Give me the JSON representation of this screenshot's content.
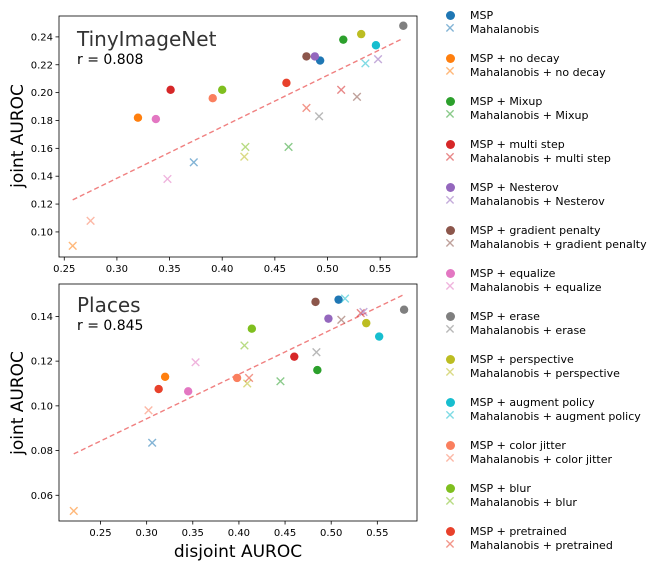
{
  "colors": {
    "MSP": "#1f77b4",
    "MSP + no decay": "#ff7f0e",
    "MSP + Mixup": "#2ca02c",
    "MSP + multi step": "#d62728",
    "MSP + Nesterov": "#9467bd",
    "MSP + gradient penalty": "#8c564b",
    "MSP + equalize": "#e377c2",
    "MSP + erase": "#7f7f7f",
    "MSP + perspective": "#bcbd22",
    "MSP + augment policy": "#17becf",
    "MSP + color jitter": "#fa7f5e",
    "MSP + blur": "#7fbf1f",
    "MSP + pretrained": "#e8412b",
    "fit_line": "#f08080"
  },
  "legend": [
    {
      "label": "MSP",
      "group": "MSP",
      "marker": "o"
    },
    {
      "label": "Mahalanobis",
      "group": "MSP",
      "marker": "x"
    },
    {
      "label": "MSP + no decay",
      "group": "MSP + no decay",
      "marker": "o"
    },
    {
      "label": "Mahalanobis + no decay",
      "group": "MSP + no decay",
      "marker": "x"
    },
    {
      "label": "MSP + Mixup",
      "group": "MSP + Mixup",
      "marker": "o"
    },
    {
      "label": "Mahalanobis + Mixup",
      "group": "MSP + Mixup",
      "marker": "x"
    },
    {
      "label": "MSP + multi step",
      "group": "MSP + multi step",
      "marker": "o"
    },
    {
      "label": "Mahalanobis + multi step",
      "group": "MSP + multi step",
      "marker": "x"
    },
    {
      "label": "MSP + Nesterov",
      "group": "MSP + Nesterov",
      "marker": "o"
    },
    {
      "label": "Mahalanobis + Nesterov",
      "group": "MSP + Nesterov",
      "marker": "x"
    },
    {
      "label": "MSP + gradient penalty",
      "group": "MSP + gradient penalty",
      "marker": "o"
    },
    {
      "label": "Mahalanobis + gradient penalty",
      "group": "MSP + gradient penalty",
      "marker": "x"
    },
    {
      "label": "MSP + equalize",
      "group": "MSP + equalize",
      "marker": "o"
    },
    {
      "label": "Mahalanobis + equalize",
      "group": "MSP + equalize",
      "marker": "x"
    },
    {
      "label": "MSP + erase",
      "group": "MSP + erase",
      "marker": "o"
    },
    {
      "label": "Mahalanobis + erase",
      "group": "MSP + erase",
      "marker": "x"
    },
    {
      "label": "MSP + perspective",
      "group": "MSP + perspective",
      "marker": "o"
    },
    {
      "label": "Mahalanobis + perspective",
      "group": "MSP + perspective",
      "marker": "x"
    },
    {
      "label": "MSP + augment policy",
      "group": "MSP + augment policy",
      "marker": "o"
    },
    {
      "label": "Mahalanobis + augment policy",
      "group": "MSP + augment policy",
      "marker": "x"
    },
    {
      "label": "MSP + color jitter",
      "group": "MSP + color jitter",
      "marker": "o"
    },
    {
      "label": "Mahalanobis + color jitter",
      "group": "MSP + color jitter",
      "marker": "x"
    },
    {
      "label": "MSP + blur",
      "group": "MSP + blur",
      "marker": "o"
    },
    {
      "label": "Mahalanobis + blur",
      "group": "MSP + blur",
      "marker": "x"
    },
    {
      "label": "MSP + pretrained",
      "group": "MSP + pretrained",
      "marker": "o"
    },
    {
      "label": "Mahalanobis + pretrained",
      "group": "MSP + pretrained",
      "marker": "x"
    }
  ],
  "chart_data": [
    {
      "type": "scatter",
      "title": "TinyImageNet",
      "annotation": "r = 0.808",
      "ylabel": "joint AUROC",
      "xlabel": "",
      "xlim": [
        0.245,
        0.585
      ],
      "ylim": [
        0.082,
        0.255
      ],
      "xticks": [
        "0.25",
        "0.30",
        "0.35",
        "0.40",
        "0.45",
        "0.50",
        "0.55"
      ],
      "xtick_values": [
        0.25,
        0.3,
        0.35,
        0.4,
        0.45,
        0.5,
        0.55
      ],
      "yticks": [
        "0.10",
        "0.12",
        "0.14",
        "0.16",
        "0.18",
        "0.20",
        "0.22",
        "0.24"
      ],
      "ytick_values": [
        0.1,
        0.12,
        0.14,
        0.16,
        0.18,
        0.2,
        0.22,
        0.24
      ],
      "fit_line": {
        "x": [
          0.258,
          0.572
        ],
        "y": [
          0.123,
          0.239
        ]
      },
      "points": [
        {
          "group": "MSP",
          "marker": "o",
          "x": 0.493,
          "y": 0.223
        },
        {
          "group": "MSP",
          "marker": "x",
          "x": 0.373,
          "y": 0.15
        },
        {
          "group": "MSP + no decay",
          "marker": "o",
          "x": 0.32,
          "y": 0.182
        },
        {
          "group": "MSP + no decay",
          "marker": "x",
          "x": 0.258,
          "y": 0.09
        },
        {
          "group": "MSP + Mixup",
          "marker": "o",
          "x": 0.515,
          "y": 0.238
        },
        {
          "group": "MSP + Mixup",
          "marker": "x",
          "x": 0.463,
          "y": 0.161
        },
        {
          "group": "MSP + multi step",
          "marker": "o",
          "x": 0.351,
          "y": 0.202
        },
        {
          "group": "MSP + multi step",
          "marker": "x",
          "x": 0.513,
          "y": 0.202
        },
        {
          "group": "MSP + Nesterov",
          "marker": "o",
          "x": 0.488,
          "y": 0.226
        },
        {
          "group": "MSP + Nesterov",
          "marker": "x",
          "x": 0.548,
          "y": 0.224
        },
        {
          "group": "MSP + gradient penalty",
          "marker": "o",
          "x": 0.48,
          "y": 0.226
        },
        {
          "group": "MSP + gradient penalty",
          "marker": "x",
          "x": 0.528,
          "y": 0.197
        },
        {
          "group": "MSP + equalize",
          "marker": "o",
          "x": 0.337,
          "y": 0.181
        },
        {
          "group": "MSP + equalize",
          "marker": "x",
          "x": 0.348,
          "y": 0.138
        },
        {
          "group": "MSP + erase",
          "marker": "o",
          "x": 0.572,
          "y": 0.248
        },
        {
          "group": "MSP + erase",
          "marker": "x",
          "x": 0.492,
          "y": 0.183
        },
        {
          "group": "MSP + perspective",
          "marker": "o",
          "x": 0.532,
          "y": 0.242
        },
        {
          "group": "MSP + perspective",
          "marker": "x",
          "x": 0.421,
          "y": 0.154
        },
        {
          "group": "MSP + augment policy",
          "marker": "o",
          "x": 0.546,
          "y": 0.234
        },
        {
          "group": "MSP + augment policy",
          "marker": "x",
          "x": 0.536,
          "y": 0.221
        },
        {
          "group": "MSP + color jitter",
          "marker": "o",
          "x": 0.391,
          "y": 0.196
        },
        {
          "group": "MSP + color jitter",
          "marker": "x",
          "x": 0.275,
          "y": 0.108
        },
        {
          "group": "MSP + blur",
          "marker": "o",
          "x": 0.4,
          "y": 0.202
        },
        {
          "group": "MSP + blur",
          "marker": "x",
          "x": 0.422,
          "y": 0.161
        },
        {
          "group": "MSP + pretrained",
          "marker": "o",
          "x": 0.461,
          "y": 0.207
        },
        {
          "group": "MSP + pretrained",
          "marker": "x",
          "x": 0.48,
          "y": 0.189
        }
      ]
    },
    {
      "type": "scatter",
      "title": "Places",
      "annotation": "r = 0.845",
      "ylabel": "joint AUROC",
      "xlabel": "disjoint AUROC",
      "xlim": [
        0.205,
        0.593
      ],
      "ylim": [
        0.0485,
        0.1545
      ],
      "xticks": [
        "0.25",
        "0.30",
        "0.35",
        "0.40",
        "0.45",
        "0.50",
        "0.55"
      ],
      "xtick_values": [
        0.25,
        0.3,
        0.35,
        0.4,
        0.45,
        0.5,
        0.55
      ],
      "yticks": [
        "0.06",
        "0.08",
        "0.10",
        "0.12",
        "0.14"
      ],
      "ytick_values": [
        0.06,
        0.08,
        0.1,
        0.12,
        0.14
      ],
      "fit_line": {
        "x": [
          0.221,
          0.58
        ],
        "y": [
          0.0785,
          0.15
        ]
      },
      "points": [
        {
          "group": "MSP",
          "marker": "o",
          "x": 0.508,
          "y": 0.1475
        },
        {
          "group": "MSP",
          "marker": "x",
          "x": 0.306,
          "y": 0.0835
        },
        {
          "group": "MSP + no decay",
          "marker": "o",
          "x": 0.32,
          "y": 0.113
        },
        {
          "group": "MSP + no decay",
          "marker": "x",
          "x": 0.221,
          "y": 0.053
        },
        {
          "group": "MSP + Mixup",
          "marker": "o",
          "x": 0.485,
          "y": 0.116
        },
        {
          "group": "MSP + Mixup",
          "marker": "x",
          "x": 0.445,
          "y": 0.111
        },
        {
          "group": "MSP + multi step",
          "marker": "o",
          "x": 0.46,
          "y": 0.122
        },
        {
          "group": "MSP + multi step",
          "marker": "x",
          "x": 0.532,
          "y": 0.1415
        },
        {
          "group": "MSP + Nesterov",
          "marker": "o",
          "x": 0.497,
          "y": 0.139
        },
        {
          "group": "MSP + Nesterov",
          "marker": "x",
          "x": 0.535,
          "y": 0.142
        },
        {
          "group": "MSP + gradient penalty",
          "marker": "o",
          "x": 0.483,
          "y": 0.1465
        },
        {
          "group": "MSP + gradient penalty",
          "marker": "x",
          "x": 0.511,
          "y": 0.1385
        },
        {
          "group": "MSP + equalize",
          "marker": "o",
          "x": 0.345,
          "y": 0.1065
        },
        {
          "group": "MSP + equalize",
          "marker": "x",
          "x": 0.353,
          "y": 0.1195
        },
        {
          "group": "MSP + erase",
          "marker": "o",
          "x": 0.579,
          "y": 0.143
        },
        {
          "group": "MSP + erase",
          "marker": "x",
          "x": 0.484,
          "y": 0.124
        },
        {
          "group": "MSP + perspective",
          "marker": "o",
          "x": 0.538,
          "y": 0.137
        },
        {
          "group": "MSP + perspective",
          "marker": "x",
          "x": 0.409,
          "y": 0.11
        },
        {
          "group": "MSP + augment policy",
          "marker": "o",
          "x": 0.552,
          "y": 0.131
        },
        {
          "group": "MSP + augment policy",
          "marker": "x",
          "x": 0.515,
          "y": 0.148
        },
        {
          "group": "MSP + color jitter",
          "marker": "o",
          "x": 0.398,
          "y": 0.1125
        },
        {
          "group": "MSP + color jitter",
          "marker": "x",
          "x": 0.302,
          "y": 0.098
        },
        {
          "group": "MSP + blur",
          "marker": "o",
          "x": 0.414,
          "y": 0.1345
        },
        {
          "group": "MSP + blur",
          "marker": "x",
          "x": 0.406,
          "y": 0.127
        },
        {
          "group": "MSP + pretrained",
          "marker": "o",
          "x": 0.313,
          "y": 0.1075
        },
        {
          "group": "MSP + pretrained",
          "marker": "x",
          "x": 0.411,
          "y": 0.1125
        }
      ]
    }
  ]
}
